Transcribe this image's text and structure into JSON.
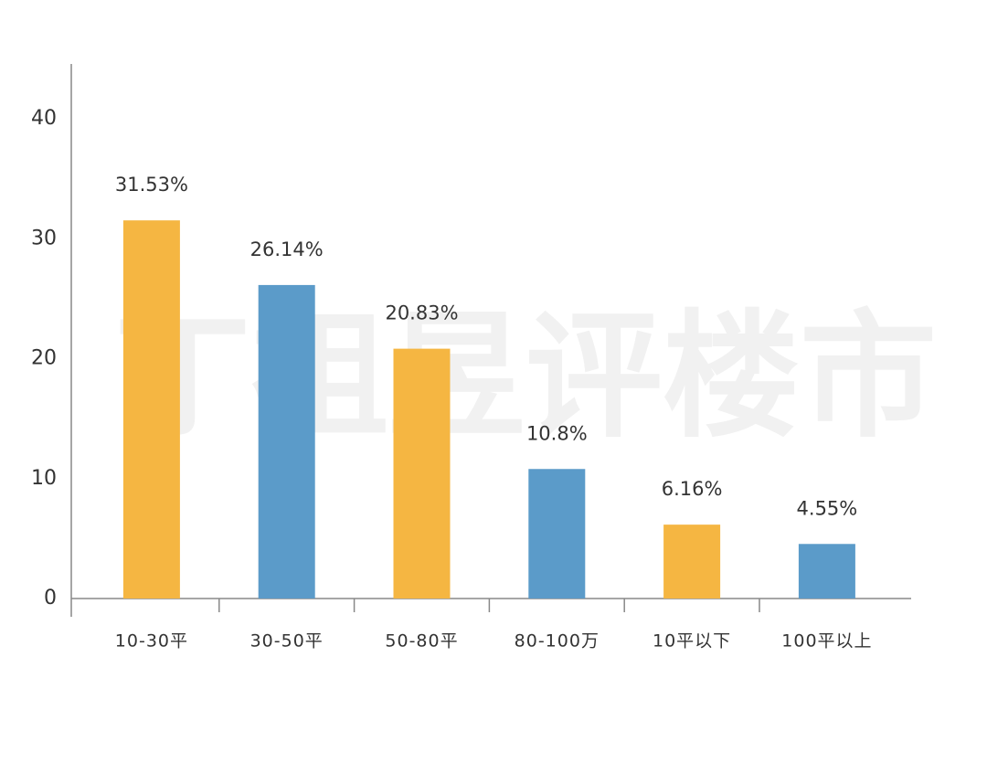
{
  "chart_data": {
    "type": "bar",
    "watermark": "丁祖昱评楼市",
    "categories": [
      "10-30平",
      "30-50平",
      "50-80平",
      "80-100万",
      "10平以下",
      "100平以上"
    ],
    "values": [
      31.53,
      26.14,
      20.83,
      10.8,
      6.16,
      4.55
    ],
    "value_labels": [
      "31.53%",
      "26.14%",
      "20.83%",
      "10.8%",
      "6.16%",
      "4.55%"
    ],
    "colors": [
      "#f5b642",
      "#5b9bc9",
      "#f5b642",
      "#5b9bc9",
      "#f5b642",
      "#5b9bc9"
    ],
    "ylim": [
      0,
      45
    ],
    "yticks": [
      0,
      10,
      20,
      30,
      40
    ],
    "grid": false
  }
}
